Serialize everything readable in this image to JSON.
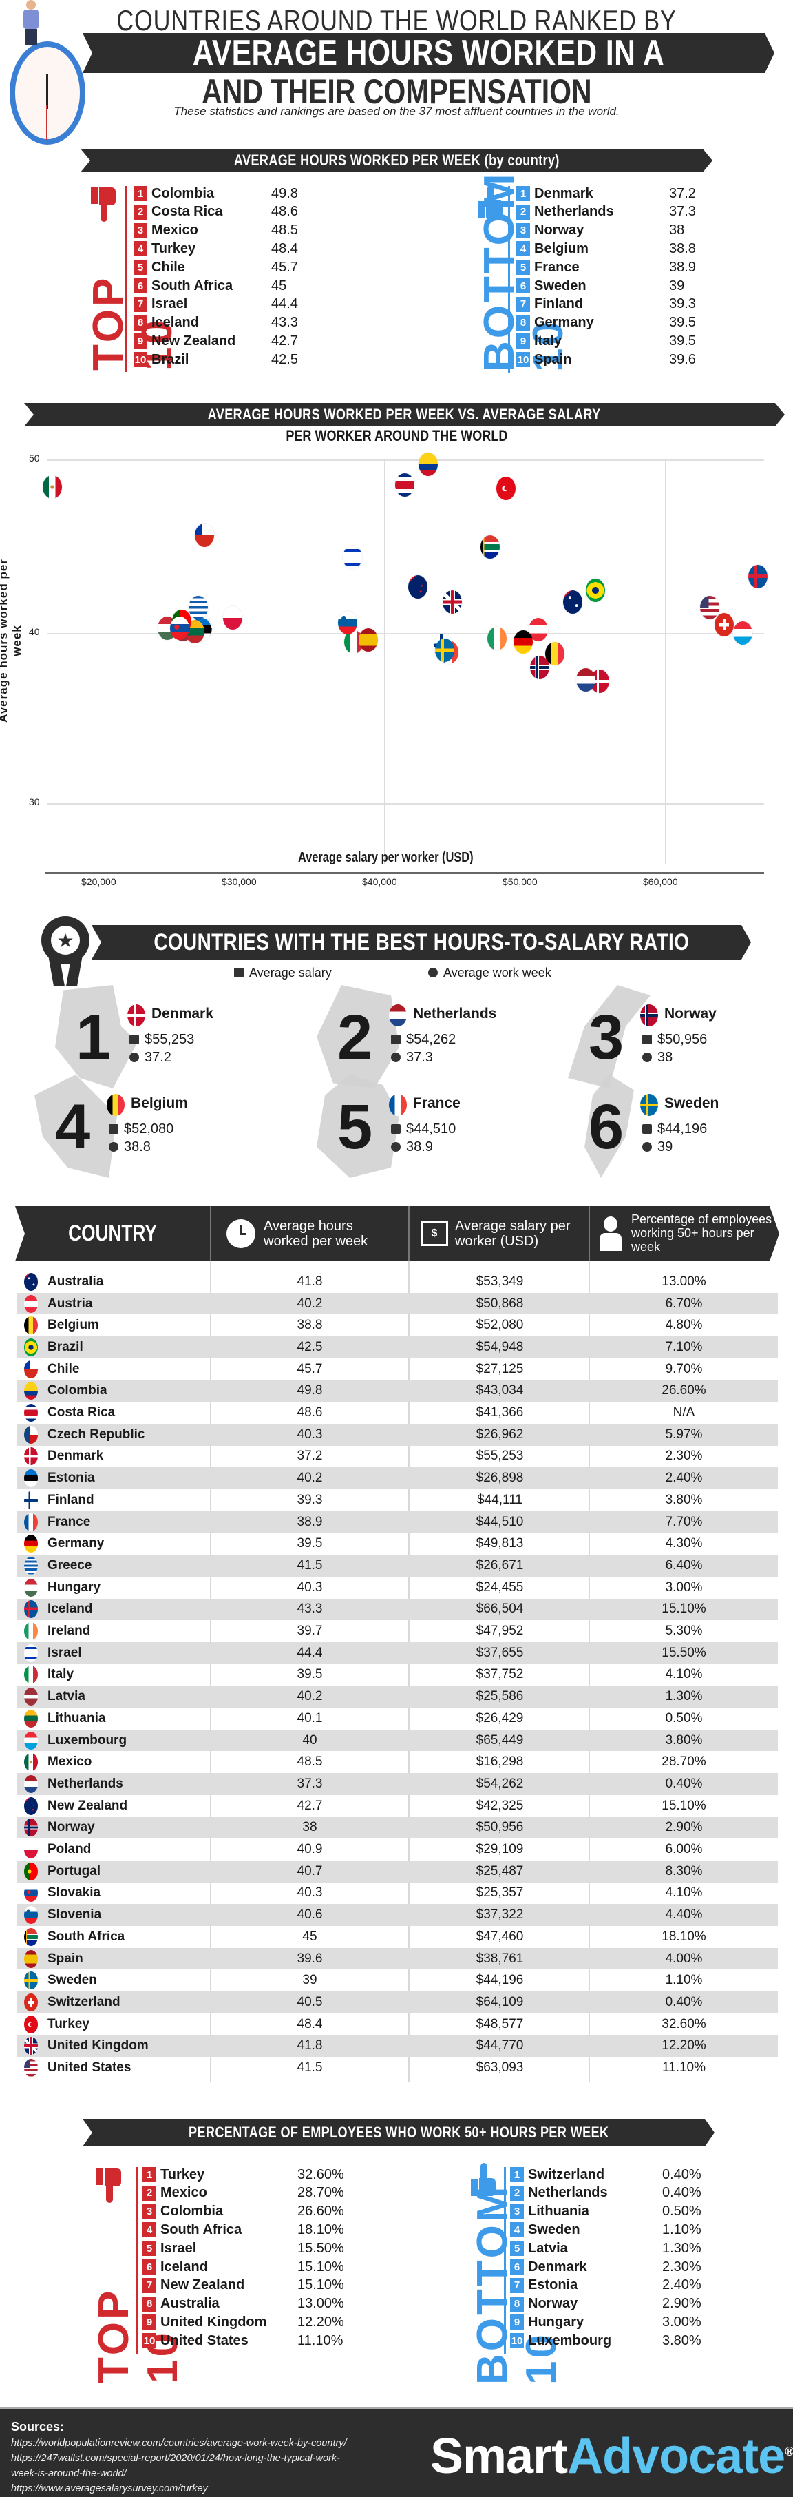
{
  "header": {
    "title_top": "COUNTRIES AROUND THE WORLD RANKED BY",
    "title_main": "AVERAGE HOURS WORKED IN A WEEK",
    "title_bottom": "AND THEIR COMPENSATION",
    "subtitle": "These statistics and rankings are based on the 37 most affluent countries in the world."
  },
  "colors": {
    "banner_dark": "#2d2d2d",
    "top_red": "#d02a2f",
    "bottom_blue": "#3d9be9",
    "brand_blue": "#5bc4f1",
    "row_alt": "#dedede"
  },
  "hours_section": {
    "title": "AVERAGE HOURS WORKED PER WEEK (by country)",
    "top_label": "TOP 10",
    "bottom_label": "BOTTOM 10",
    "top": [
      {
        "rank": "1",
        "country": "Colombia",
        "value": "49.8"
      },
      {
        "rank": "2",
        "country": "Costa Rica",
        "value": "48.6"
      },
      {
        "rank": "3",
        "country": "Mexico",
        "value": "48.5"
      },
      {
        "rank": "4",
        "country": "Turkey",
        "value": "48.4"
      },
      {
        "rank": "5",
        "country": "Chile",
        "value": "45.7"
      },
      {
        "rank": "6",
        "country": "South Africa",
        "value": "45"
      },
      {
        "rank": "7",
        "country": "Israel",
        "value": "44.4"
      },
      {
        "rank": "8",
        "country": "Iceland",
        "value": "43.3"
      },
      {
        "rank": "9",
        "country": "New Zealand",
        "value": "42.7"
      },
      {
        "rank": "10",
        "country": "Brazil",
        "value": "42.5"
      }
    ],
    "bottom": [
      {
        "rank": "1",
        "country": "Denmark",
        "value": "37.2"
      },
      {
        "rank": "2",
        "country": "Netherlands",
        "value": "37.3"
      },
      {
        "rank": "3",
        "country": "Norway",
        "value": "38"
      },
      {
        "rank": "4",
        "country": "Belgium",
        "value": "38.8"
      },
      {
        "rank": "5",
        "country": "France",
        "value": "38.9"
      },
      {
        "rank": "6",
        "country": "Sweden",
        "value": "39"
      },
      {
        "rank": "7",
        "country": "Finland",
        "value": "39.3"
      },
      {
        "rank": "8",
        "country": "Germany",
        "value": "39.5"
      },
      {
        "rank": "9",
        "country": "Italy",
        "value": "39.5"
      },
      {
        "rank": "10",
        "country": "Spain",
        "value": "39.6"
      }
    ]
  },
  "scatter": {
    "title_line1": "AVERAGE HOURS WORKED PER WEEK VS. AVERAGE SALARY",
    "title_line2": "PER WORKER AROUND THE WORLD",
    "ylabel": "Average hours worked per week",
    "xlabel": "Average salary per worker (USD)",
    "yticks": [
      "50",
      "40",
      "30"
    ],
    "xticks": [
      "$20,000",
      "$30,000",
      "$40,000",
      "$50,000",
      "$60,000"
    ]
  },
  "chart_data": {
    "type": "scatter",
    "title": "Average Hours Worked Per Week vs. Average Salary Per Worker Around the World",
    "xlabel": "Average salary per worker (USD)",
    "ylabel": "Average hours worked per week",
    "xlim": [
      16000,
      66500
    ],
    "ylim": [
      27,
      50
    ],
    "xticks": [
      20000,
      30000,
      40000,
      50000,
      60000
    ],
    "yticks": [
      30,
      40,
      50
    ],
    "grid": true,
    "legend": "none (points are country flags)",
    "points": [
      {
        "label": "Australia",
        "x": 53349,
        "y": 41.8,
        "flag": "australia"
      },
      {
        "label": "Austria",
        "x": 50868,
        "y": 40.2,
        "flag": "austria"
      },
      {
        "label": "Belgium",
        "x": 52080,
        "y": 38.8,
        "flag": "belgium"
      },
      {
        "label": "Brazil",
        "x": 54948,
        "y": 42.5,
        "flag": "brazil"
      },
      {
        "label": "Chile",
        "x": 27125,
        "y": 45.7,
        "flag": "chile"
      },
      {
        "label": "Colombia",
        "x": 43034,
        "y": 49.8,
        "flag": "colombia"
      },
      {
        "label": "Costa Rica",
        "x": 41366,
        "y": 48.6,
        "flag": "costa-rica"
      },
      {
        "label": "Czech Republic",
        "x": 26962,
        "y": 40.3,
        "flag": "czech"
      },
      {
        "label": "Denmark",
        "x": 55253,
        "y": 37.2,
        "flag": "denmark"
      },
      {
        "label": "Estonia",
        "x": 26898,
        "y": 40.2,
        "flag": "estonia"
      },
      {
        "label": "Finland",
        "x": 44111,
        "y": 39.3,
        "flag": "finland"
      },
      {
        "label": "France",
        "x": 44510,
        "y": 38.9,
        "flag": "france"
      },
      {
        "label": "Germany",
        "x": 49813,
        "y": 39.5,
        "flag": "germany"
      },
      {
        "label": "Greece",
        "x": 26671,
        "y": 41.5,
        "flag": "greece"
      },
      {
        "label": "Hungary",
        "x": 24455,
        "y": 40.3,
        "flag": "hungary"
      },
      {
        "label": "Iceland",
        "x": 66504,
        "y": 43.3,
        "flag": "iceland"
      },
      {
        "label": "Ireland",
        "x": 47952,
        "y": 39.7,
        "flag": "ireland"
      },
      {
        "label": "Israel",
        "x": 37655,
        "y": 44.4,
        "flag": "israel"
      },
      {
        "label": "Italy",
        "x": 37752,
        "y": 39.5,
        "flag": "italy"
      },
      {
        "label": "Latvia",
        "x": 25586,
        "y": 40.2,
        "flag": "latvia"
      },
      {
        "label": "Lithuania",
        "x": 26429,
        "y": 40.1,
        "flag": "lithuania"
      },
      {
        "label": "Luxembourg",
        "x": 65449,
        "y": 40.0,
        "flag": "luxembourg"
      },
      {
        "label": "Mexico",
        "x": 16298,
        "y": 48.5,
        "flag": "mexico"
      },
      {
        "label": "Netherlands",
        "x": 54262,
        "y": 37.3,
        "flag": "netherlands"
      },
      {
        "label": "New Zealand",
        "x": 42325,
        "y": 42.7,
        "flag": "new-zealand"
      },
      {
        "label": "Norway",
        "x": 50956,
        "y": 38.0,
        "flag": "norway"
      },
      {
        "label": "Poland",
        "x": 29109,
        "y": 40.9,
        "flag": "poland"
      },
      {
        "label": "Portugal",
        "x": 25487,
        "y": 40.7,
        "flag": "portugal"
      },
      {
        "label": "Slovakia",
        "x": 25357,
        "y": 40.3,
        "flag": "slovakia"
      },
      {
        "label": "Slovenia",
        "x": 37322,
        "y": 40.6,
        "flag": "slovenia"
      },
      {
        "label": "South Africa",
        "x": 47460,
        "y": 45.0,
        "flag": "south-africa"
      },
      {
        "label": "Spain",
        "x": 38761,
        "y": 39.6,
        "flag": "spain"
      },
      {
        "label": "Sweden",
        "x": 44196,
        "y": 39.0,
        "flag": "sweden"
      },
      {
        "label": "Switzerland",
        "x": 64109,
        "y": 40.5,
        "flag": "switzerland"
      },
      {
        "label": "Turkey",
        "x": 48577,
        "y": 48.4,
        "flag": "turkey"
      },
      {
        "label": "United Kingdom",
        "x": 44770,
        "y": 41.8,
        "flag": "uk"
      },
      {
        "label": "United States",
        "x": 63093,
        "y": 41.5,
        "flag": "usa"
      }
    ]
  },
  "best_ratio": {
    "title": "COUNTRIES WITH THE BEST HOURS-TO-SALARY RATIO",
    "legend_salary": "Average salary",
    "legend_week": "Average work week",
    "items": [
      {
        "rank": "1",
        "country": "Denmark",
        "salary": "$55,253",
        "hours": "37.2",
        "flag": "denmark"
      },
      {
        "rank": "2",
        "country": "Netherlands",
        "salary": "$54,262",
        "hours": "37.3",
        "flag": "netherlands"
      },
      {
        "rank": "3",
        "country": "Norway",
        "salary": "$50,956",
        "hours": "38",
        "flag": "norway"
      },
      {
        "rank": "4",
        "country": "Belgium",
        "salary": "$52,080",
        "hours": "38.8",
        "flag": "belgium"
      },
      {
        "rank": "5",
        "country": "France",
        "salary": "$44,510",
        "hours": "38.9",
        "flag": "france"
      },
      {
        "rank": "6",
        "country": "Sweden",
        "salary": "$44,196",
        "hours": "39",
        "flag": "sweden"
      }
    ]
  },
  "table": {
    "headers": [
      "COUNTRY",
      "Average hours worked per week",
      "Average salary per worker (USD)",
      "Percentage of employees working 50+ hours per week"
    ],
    "rows": [
      {
        "country": "Australia",
        "hours": "41.8",
        "salary": "$53,349",
        "pct": "13.00%",
        "flag": "australia"
      },
      {
        "country": "Austria",
        "hours": "40.2",
        "salary": "$50,868",
        "pct": "6.70%",
        "flag": "austria"
      },
      {
        "country": "Belgium",
        "hours": "38.8",
        "salary": "$52,080",
        "pct": "4.80%",
        "flag": "belgium"
      },
      {
        "country": "Brazil",
        "hours": "42.5",
        "salary": "$54,948",
        "pct": "7.10%",
        "flag": "brazil"
      },
      {
        "country": "Chile",
        "hours": "45.7",
        "salary": "$27,125",
        "pct": "9.70%",
        "flag": "chile"
      },
      {
        "country": "Colombia",
        "hours": "49.8",
        "salary": "$43,034",
        "pct": "26.60%",
        "flag": "colombia"
      },
      {
        "country": "Costa Rica",
        "hours": "48.6",
        "salary": "$41,366",
        "pct": "N/A",
        "flag": "costa-rica"
      },
      {
        "country": "Czech Republic",
        "hours": "40.3",
        "salary": "$26,962",
        "pct": "5.97%",
        "flag": "czech"
      },
      {
        "country": "Denmark",
        "hours": "37.2",
        "salary": "$55,253",
        "pct": "2.30%",
        "flag": "denmark"
      },
      {
        "country": "Estonia",
        "hours": "40.2",
        "salary": "$26,898",
        "pct": "2.40%",
        "flag": "estonia"
      },
      {
        "country": "Finland",
        "hours": "39.3",
        "salary": "$44,111",
        "pct": "3.80%",
        "flag": "finland"
      },
      {
        "country": "France",
        "hours": "38.9",
        "salary": "$44,510",
        "pct": "7.70%",
        "flag": "france"
      },
      {
        "country": "Germany",
        "hours": "39.5",
        "salary": "$49,813",
        "pct": "4.30%",
        "flag": "germany"
      },
      {
        "country": "Greece",
        "hours": "41.5",
        "salary": "$26,671",
        "pct": "6.40%",
        "flag": "greece"
      },
      {
        "country": "Hungary",
        "hours": "40.3",
        "salary": "$24,455",
        "pct": "3.00%",
        "flag": "hungary"
      },
      {
        "country": "Iceland",
        "hours": "43.3",
        "salary": "$66,504",
        "pct": "15.10%",
        "flag": "iceland"
      },
      {
        "country": "Ireland",
        "hours": "39.7",
        "salary": "$47,952",
        "pct": "5.30%",
        "flag": "ireland"
      },
      {
        "country": "Israel",
        "hours": "44.4",
        "salary": "$37,655",
        "pct": "15.50%",
        "flag": "israel"
      },
      {
        "country": "Italy",
        "hours": "39.5",
        "salary": "$37,752",
        "pct": "4.10%",
        "flag": "italy"
      },
      {
        "country": "Latvia",
        "hours": "40.2",
        "salary": "$25,586",
        "pct": "1.30%",
        "flag": "latvia"
      },
      {
        "country": "Lithuania",
        "hours": "40.1",
        "salary": "$26,429",
        "pct": "0.50%",
        "flag": "lithuania"
      },
      {
        "country": "Luxembourg",
        "hours": "40",
        "salary": "$65,449",
        "pct": "3.80%",
        "flag": "luxembourg"
      },
      {
        "country": "Mexico",
        "hours": "48.5",
        "salary": "$16,298",
        "pct": "28.70%",
        "flag": "mexico"
      },
      {
        "country": "Netherlands",
        "hours": "37.3",
        "salary": "$54,262",
        "pct": "0.40%",
        "flag": "netherlands"
      },
      {
        "country": "New Zealand",
        "hours": "42.7",
        "salary": "$42,325",
        "pct": "15.10%",
        "flag": "new-zealand"
      },
      {
        "country": "Norway",
        "hours": "38",
        "salary": "$50,956",
        "pct": "2.90%",
        "flag": "norway"
      },
      {
        "country": "Poland",
        "hours": "40.9",
        "salary": "$29,109",
        "pct": "6.00%",
        "flag": "poland"
      },
      {
        "country": "Portugal",
        "hours": "40.7",
        "salary": "$25,487",
        "pct": "8.30%",
        "flag": "portugal"
      },
      {
        "country": "Slovakia",
        "hours": "40.3",
        "salary": "$25,357",
        "pct": "4.10%",
        "flag": "slovakia"
      },
      {
        "country": "Slovenia",
        "hours": "40.6",
        "salary": "$37,322",
        "pct": "4.40%",
        "flag": "slovenia"
      },
      {
        "country": "South Africa",
        "hours": "45",
        "salary": "$47,460",
        "pct": "18.10%",
        "flag": "south-africa"
      },
      {
        "country": "Spain",
        "hours": "39.6",
        "salary": "$38,761",
        "pct": "4.00%",
        "flag": "spain"
      },
      {
        "country": "Sweden",
        "hours": "39",
        "salary": "$44,196",
        "pct": "1.10%",
        "flag": "sweden"
      },
      {
        "country": "Switzerland",
        "hours": "40.5",
        "salary": "$64,109",
        "pct": "0.40%",
        "flag": "switzerland"
      },
      {
        "country": "Turkey",
        "hours": "48.4",
        "salary": "$48,577",
        "pct": "32.60%",
        "flag": "turkey"
      },
      {
        "country": "United Kingdom",
        "hours": "41.8",
        "salary": "$44,770",
        "pct": "12.20%",
        "flag": "uk"
      },
      {
        "country": "United States",
        "hours": "41.5",
        "salary": "$63,093",
        "pct": "11.10%",
        "flag": "usa"
      }
    ]
  },
  "pct_section": {
    "title": "PERCENTAGE OF EMPLOYEES WHO WORK 50+ HOURS PER WEEK",
    "top_label": "TOP 10",
    "bottom_label": "BOTTOM 10",
    "top": [
      {
        "rank": "1",
        "country": "Turkey",
        "value": "32.60%"
      },
      {
        "rank": "2",
        "country": "Mexico",
        "value": "28.70%"
      },
      {
        "rank": "3",
        "country": "Colombia",
        "value": "26.60%"
      },
      {
        "rank": "4",
        "country": "South Africa",
        "value": "18.10%"
      },
      {
        "rank": "5",
        "country": "Israel",
        "value": "15.50%"
      },
      {
        "rank": "6",
        "country": "Iceland",
        "value": "15.10%"
      },
      {
        "rank": "7",
        "country": "New Zealand",
        "value": "15.10%"
      },
      {
        "rank": "8",
        "country": "Australia",
        "value": "13.00%"
      },
      {
        "rank": "9",
        "country": "United Kingdom",
        "value": "12.20%"
      },
      {
        "rank": "10",
        "country": "United States",
        "value": "11.10%"
      }
    ],
    "bottom": [
      {
        "rank": "1",
        "country": "Switzerland",
        "value": "0.40%"
      },
      {
        "rank": "2",
        "country": "Netherlands",
        "value": "0.40%"
      },
      {
        "rank": "3",
        "country": "Lithuania",
        "value": "0.50%"
      },
      {
        "rank": "4",
        "country": "Sweden",
        "value": "1.10%"
      },
      {
        "rank": "5",
        "country": "Latvia",
        "value": "1.30%"
      },
      {
        "rank": "6",
        "country": "Denmark",
        "value": "2.30%"
      },
      {
        "rank": "7",
        "country": "Estonia",
        "value": "2.40%"
      },
      {
        "rank": "8",
        "country": "Norway",
        "value": "2.90%"
      },
      {
        "rank": "9",
        "country": "Hungary",
        "value": "3.00%"
      },
      {
        "rank": "10",
        "country": "Luxembourg",
        "value": "3.80%"
      }
    ]
  },
  "footer": {
    "sources_label": "Sources:",
    "sources": [
      "https://worldpopulationreview.com/countries/average-work-week-by-country/",
      "https://247wallst.com/special-report/2020/01/24/how-long-the-typical-work-",
      "week-is-around-the-world/",
      "https://www.averagesalarysurvey.com/turkey"
    ],
    "logo_part1": "Smart",
    "logo_part2": "Advocate",
    "logo_mark": "®"
  }
}
